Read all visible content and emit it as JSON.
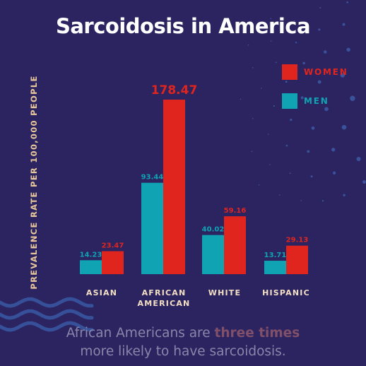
{
  "title": "Sarcoidosis in America",
  "colors": {
    "background": "#2b2460",
    "women": "#e0251f",
    "men": "#0fa3b4",
    "accent_text": "#e8c79c"
  },
  "legend": [
    {
      "label": "WOMEN",
      "color": "#e0251f"
    },
    {
      "label": "MEN",
      "color": "#0fa3b4"
    }
  ],
  "caption": {
    "line1_before": "African Americans are ",
    "line1_emphasis": "three times",
    "line2": "more likely to have sarcoidosis."
  },
  "chart_data": {
    "type": "bar",
    "ylabel": "PREVALENCE RATE PER 100,000 PEOPLE",
    "categories": [
      [
        "ASIAN"
      ],
      [
        "AFRICAN",
        "AMERICAN"
      ],
      [
        "WHITE"
      ],
      [
        "HISPANIC"
      ]
    ],
    "series": [
      {
        "name": "MEN",
        "color": "#0fa3b4",
        "values": [
          14.23,
          93.44,
          40.02,
          13.71
        ],
        "labels": [
          "14.23",
          "93.44",
          "40.02",
          "13.71"
        ]
      },
      {
        "name": "WOMEN",
        "color": "#e0251f",
        "values": [
          23.47,
          178.47,
          59.16,
          29.13
        ],
        "labels": [
          "23.47",
          "178.47",
          "59.16",
          "29.13"
        ]
      }
    ],
    "ylim": [
      0,
      178.47
    ],
    "grid": false,
    "legend_position": "top-right"
  }
}
